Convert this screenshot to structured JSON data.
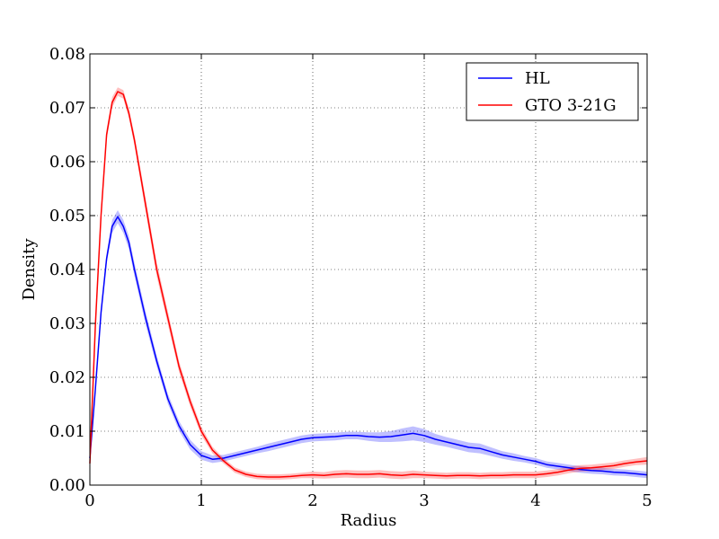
{
  "chart_data": {
    "type": "line",
    "title": "",
    "xlabel": "Radius",
    "ylabel": "Density",
    "xlim": [
      0,
      5
    ],
    "ylim": [
      0,
      0.08
    ],
    "xticks": [
      "0",
      "1",
      "2",
      "3",
      "4",
      "5"
    ],
    "yticks": [
      "0.00",
      "0.01",
      "0.02",
      "0.03",
      "0.04",
      "0.05",
      "0.06",
      "0.07",
      "0.08"
    ],
    "grid": true,
    "legend_position": "top-right",
    "series": [
      {
        "name": "HL",
        "color": "#0000ff",
        "x": [
          0,
          0.05,
          0.1,
          0.15,
          0.2,
          0.25,
          0.3,
          0.35,
          0.4,
          0.5,
          0.6,
          0.7,
          0.8,
          0.9,
          1.0,
          1.1,
          1.2,
          1.3,
          1.4,
          1.5,
          1.6,
          1.7,
          1.8,
          1.9,
          2.0,
          2.1,
          2.2,
          2.3,
          2.4,
          2.5,
          2.6,
          2.7,
          2.8,
          2.9,
          3.0,
          3.1,
          3.2,
          3.3,
          3.4,
          3.5,
          3.6,
          3.7,
          3.8,
          3.9,
          4.0,
          4.1,
          4.2,
          4.3,
          4.4,
          4.5,
          4.6,
          4.7,
          4.8,
          4.9,
          5.0
        ],
        "y": [
          0.005,
          0.018,
          0.032,
          0.042,
          0.048,
          0.0498,
          0.048,
          0.045,
          0.04,
          0.031,
          0.023,
          0.016,
          0.011,
          0.0075,
          0.0055,
          0.0048,
          0.005,
          0.0055,
          0.006,
          0.0065,
          0.007,
          0.0075,
          0.008,
          0.0085,
          0.0088,
          0.0089,
          0.009,
          0.0092,
          0.0092,
          0.009,
          0.0089,
          0.009,
          0.0093,
          0.0096,
          0.0092,
          0.0085,
          0.008,
          0.0075,
          0.007,
          0.0068,
          0.0062,
          0.0056,
          0.0052,
          0.0048,
          0.0044,
          0.0038,
          0.0035,
          0.0032,
          0.0029,
          0.0027,
          0.0026,
          0.0024,
          0.0023,
          0.0021,
          0.0019
        ],
        "band": [
          0.0005,
          0.0006,
          0.0008,
          0.001,
          0.0012,
          0.0012,
          0.0012,
          0.0012,
          0.0012,
          0.0012,
          0.001,
          0.0009,
          0.0009,
          0.0009,
          0.0008,
          0.0007,
          0.0006,
          0.0006,
          0.0006,
          0.0006,
          0.0007,
          0.0007,
          0.0007,
          0.0007,
          0.0007,
          0.0007,
          0.0007,
          0.0007,
          0.0007,
          0.0008,
          0.0009,
          0.001,
          0.0012,
          0.0013,
          0.0012,
          0.001,
          0.0009,
          0.0009,
          0.0009,
          0.0009,
          0.0008,
          0.0007,
          0.0007,
          0.0006,
          0.0006,
          0.0006,
          0.0006,
          0.0006,
          0.0006,
          0.0006,
          0.0006,
          0.0006,
          0.0006,
          0.0006,
          0.0006
        ]
      },
      {
        "name": "GTO 3-21G",
        "color": "#ff0000",
        "x": [
          0,
          0.05,
          0.1,
          0.15,
          0.2,
          0.25,
          0.3,
          0.35,
          0.4,
          0.5,
          0.6,
          0.7,
          0.8,
          0.9,
          1.0,
          1.1,
          1.2,
          1.3,
          1.4,
          1.5,
          1.6,
          1.7,
          1.8,
          1.9,
          2.0,
          2.1,
          2.2,
          2.3,
          2.4,
          2.5,
          2.6,
          2.7,
          2.8,
          2.9,
          3.0,
          3.1,
          3.2,
          3.3,
          3.4,
          3.5,
          3.6,
          3.7,
          3.8,
          3.9,
          4.0,
          4.1,
          4.2,
          4.3,
          4.4,
          4.5,
          4.6,
          4.7,
          4.8,
          4.9,
          5.0
        ],
        "y": [
          0.004,
          0.03,
          0.05,
          0.065,
          0.071,
          0.073,
          0.0725,
          0.069,
          0.064,
          0.052,
          0.04,
          0.031,
          0.022,
          0.0155,
          0.01,
          0.0065,
          0.0045,
          0.0028,
          0.002,
          0.0016,
          0.0015,
          0.0015,
          0.0016,
          0.0018,
          0.0019,
          0.0018,
          0.002,
          0.0021,
          0.002,
          0.002,
          0.0021,
          0.0019,
          0.0018,
          0.002,
          0.0019,
          0.0018,
          0.0017,
          0.0018,
          0.0018,
          0.0017,
          0.0018,
          0.0018,
          0.0019,
          0.0019,
          0.0019,
          0.0021,
          0.0024,
          0.0028,
          0.0031,
          0.0032,
          0.0034,
          0.0036,
          0.004,
          0.0043,
          0.0045
        ],
        "band": [
          0.0005,
          0.0008,
          0.001,
          0.001,
          0.001,
          0.0008,
          0.0008,
          0.0009,
          0.001,
          0.0013,
          0.0013,
          0.0012,
          0.001,
          0.0009,
          0.0008,
          0.0006,
          0.0005,
          0.0005,
          0.0005,
          0.0005,
          0.0005,
          0.0005,
          0.0005,
          0.0005,
          0.0006,
          0.0006,
          0.0007,
          0.0007,
          0.0007,
          0.0007,
          0.0007,
          0.0007,
          0.0007,
          0.0007,
          0.0006,
          0.0006,
          0.0006,
          0.0006,
          0.0006,
          0.0006,
          0.0006,
          0.0006,
          0.0006,
          0.0006,
          0.0006,
          0.0006,
          0.0006,
          0.0006,
          0.0006,
          0.0006,
          0.0006,
          0.0006,
          0.0006,
          0.0006,
          0.0007
        ]
      }
    ]
  }
}
